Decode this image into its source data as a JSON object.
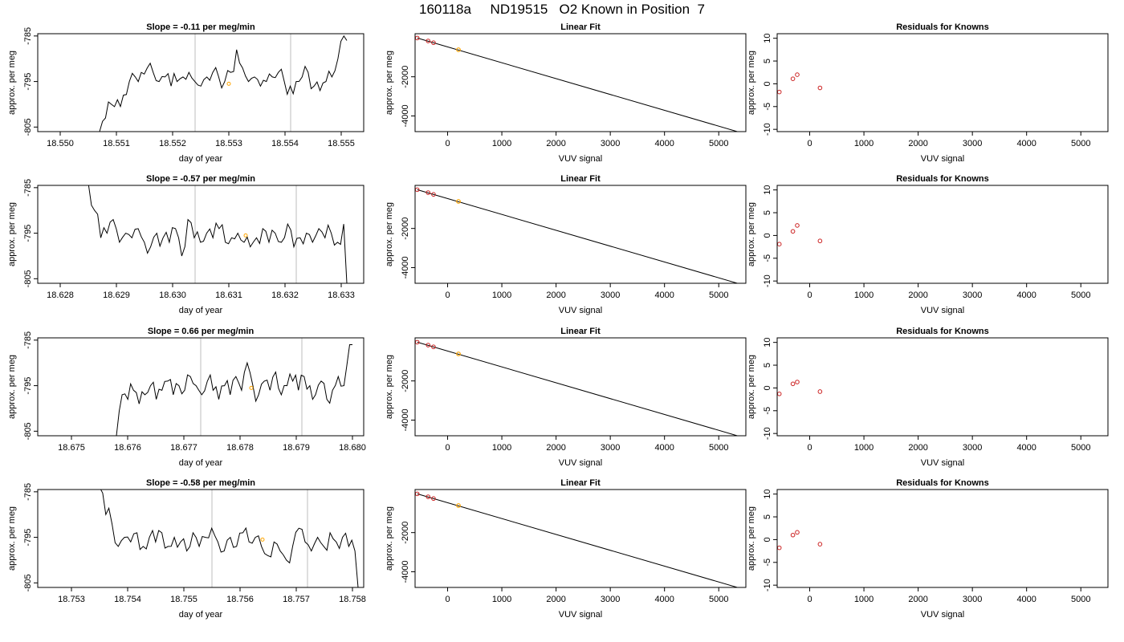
{
  "figure": {
    "title": "160118a     ND19515   O2 Known in Position  7"
  },
  "colors": {
    "line": "#000000",
    "gridline": "#c8c8c8",
    "known_points": "#cc2222",
    "unknown_point": "#ffa500"
  },
  "chart_data": [
    {
      "type": "line",
      "row": 1,
      "title": "Slope =  -0.11  per meg/min",
      "xlabel": "day of year",
      "ylabel": "approx. per meg",
      "xlim": [
        18.5496,
        18.5554
      ],
      "ylim": [
        -806,
        -784.5
      ],
      "xticks": [
        "18.550",
        "18.551",
        "18.552",
        "18.553",
        "18.554",
        "18.555"
      ],
      "yticks": [
        "-805",
        "-795",
        "-785"
      ],
      "vlines": [
        18.5524,
        18.5541
      ],
      "series": [
        {
          "x_start": 18.5507,
          "x_end": 18.5551,
          "seed": 11,
          "end_y": -786,
          "values": [
            -806,
            -803,
            -800,
            -799,
            -798,
            -795,
            -794,
            -793,
            -792,
            -793,
            -795,
            -794,
            -796,
            -795,
            -794,
            -793,
            -795,
            -796,
            -794,
            -793,
            -794,
            -795,
            -793,
            -788,
            -792,
            -795,
            -794,
            -796,
            -795,
            -794,
            -793,
            -795,
            -796,
            -795,
            -794,
            -793,
            -796,
            -797,
            -795,
            -794,
            -790,
            -785
          ]
        }
      ],
      "marker": {
        "x": 18.553,
        "y": -795.5
      }
    },
    {
      "type": "scatter",
      "row": 1,
      "title": "Linear Fit",
      "xlabel": "VUV signal",
      "ylabel": "approx. per meg",
      "xlim": [
        -600,
        5500
      ],
      "ylim": [
        -4800,
        200
      ],
      "xticks": [
        "0",
        "1000",
        "2000",
        "3000",
        "4000",
        "5000"
      ],
      "yticks": [
        "-4000",
        "-2000"
      ],
      "fit_line": {
        "x": [
          -560,
          5380
        ],
        "y": [
          -20,
          -4830
        ]
      },
      "known_points": [
        {
          "x": -560,
          "y": -20
        },
        {
          "x": -360,
          "y": -170
        },
        {
          "x": -260,
          "y": -260
        }
      ],
      "unknown_point": {
        "x": 200,
        "y": -620
      }
    },
    {
      "type": "scatter",
      "row": 1,
      "title": "Residuals for Knowns",
      "xlabel": "VUV signal",
      "ylabel": "approx. per meg",
      "xlim": [
        -600,
        5500
      ],
      "ylim": [
        -10.5,
        11
      ],
      "xticks": [
        "0",
        "1000",
        "2000",
        "3000",
        "4000",
        "5000"
      ],
      "yticks": [
        "-10",
        "-5",
        "0",
        "5",
        "10"
      ],
      "points": [
        {
          "x": -560,
          "y": -1.8
        },
        {
          "x": -310,
          "y": 1.1
        },
        {
          "x": -230,
          "y": 2.0
        },
        {
          "x": 190,
          "y": -0.9
        }
      ]
    },
    {
      "type": "line",
      "row": 2,
      "title": "Slope =  -0.57  per meg/min",
      "xlabel": "day of year",
      "ylabel": "approx. per meg",
      "xlim": [
        18.6276,
        18.6334
      ],
      "ylim": [
        -806,
        -784.5
      ],
      "xticks": [
        "18.628",
        "18.629",
        "18.630",
        "18.631",
        "18.632",
        "18.633"
      ],
      "yticks": [
        "-805",
        "-795",
        "-785"
      ],
      "vlines": [
        18.6304,
        18.6322
      ],
      "series": [
        {
          "x_start": 18.6285,
          "x_end": 18.6331,
          "seed": 23,
          "end_y": -806,
          "values": [
            -784,
            -790,
            -796,
            -795,
            -792,
            -797,
            -795,
            -796,
            -794,
            -797,
            -798,
            -795,
            -796,
            -797,
            -794,
            -800,
            -792,
            -796,
            -797,
            -795,
            -796,
            -794,
            -797,
            -796,
            -795,
            -797,
            -798,
            -796,
            -794,
            -797,
            -795,
            -797,
            -793,
            -798,
            -796,
            -795,
            -797,
            -794,
            -796,
            -795,
            -797,
            -793
          ]
        }
      ],
      "marker": {
        "x": 18.6313,
        "y": -795.5
      }
    },
    {
      "type": "scatter",
      "row": 2,
      "title": "Linear Fit",
      "xlabel": "VUV signal",
      "ylabel": "approx. per meg",
      "xlim": [
        -600,
        5500
      ],
      "ylim": [
        -4800,
        200
      ],
      "xticks": [
        "0",
        "1000",
        "2000",
        "3000",
        "4000",
        "5000"
      ],
      "yticks": [
        "-4000",
        "-2000"
      ],
      "fit_line": {
        "x": [
          -560,
          5380
        ],
        "y": [
          -20,
          -4830
        ]
      },
      "known_points": [
        {
          "x": -560,
          "y": -20
        },
        {
          "x": -360,
          "y": -170
        },
        {
          "x": -260,
          "y": -260
        }
      ],
      "unknown_point": {
        "x": 200,
        "y": -620
      }
    },
    {
      "type": "scatter",
      "row": 2,
      "title": "Residuals for Knowns",
      "xlabel": "VUV signal",
      "ylabel": "approx. per meg",
      "xlim": [
        -600,
        5500
      ],
      "ylim": [
        -10.5,
        11
      ],
      "xticks": [
        "0",
        "1000",
        "2000",
        "3000",
        "4000",
        "5000"
      ],
      "yticks": [
        "-10",
        "-5",
        "0",
        "5",
        "10"
      ],
      "points": [
        {
          "x": -560,
          "y": -1.9
        },
        {
          "x": -310,
          "y": 0.9
        },
        {
          "x": -230,
          "y": 2.2
        },
        {
          "x": 190,
          "y": -1.2
        }
      ]
    },
    {
      "type": "line",
      "row": 3,
      "title": "Slope =  0.66  per meg/min",
      "xlabel": "day of year",
      "ylabel": "approx. per meg",
      "xlim": [
        18.6744,
        18.6802
      ],
      "ylim": [
        -806,
        -784.5
      ],
      "xticks": [
        "18.675",
        "18.676",
        "18.677",
        "18.678",
        "18.679",
        "18.680"
      ],
      "yticks": [
        "-805",
        "-795",
        "-785"
      ],
      "vlines": [
        18.6773,
        18.6791
      ],
      "series": [
        {
          "x_start": 18.6758,
          "x_end": 18.68,
          "seed": 37,
          "end_y": -786,
          "values": [
            -806,
            -797,
            -798,
            -796,
            -799,
            -797,
            -795,
            -798,
            -796,
            -794,
            -797,
            -795,
            -796,
            -793,
            -795,
            -797,
            -794,
            -796,
            -798,
            -795,
            -797,
            -793,
            -796,
            -790,
            -795,
            -797,
            -794,
            -796,
            -792,
            -797,
            -795,
            -794,
            -796,
            -793,
            -795,
            -797,
            -794,
            -798,
            -796,
            -793,
            -795,
            -786
          ]
        }
      ],
      "marker": {
        "x": 18.6782,
        "y": -795.5
      }
    },
    {
      "type": "scatter",
      "row": 3,
      "title": "Linear Fit",
      "xlabel": "VUV signal",
      "ylabel": "approx. per meg",
      "xlim": [
        -600,
        5500
      ],
      "ylim": [
        -4800,
        200
      ],
      "xticks": [
        "0",
        "1000",
        "2000",
        "3000",
        "4000",
        "5000"
      ],
      "yticks": [
        "-4000",
        "-2000"
      ],
      "fit_line": {
        "x": [
          -560,
          5380
        ],
        "y": [
          -20,
          -4830
        ]
      },
      "known_points": [
        {
          "x": -560,
          "y": -20
        },
        {
          "x": -360,
          "y": -170
        },
        {
          "x": -260,
          "y": -260
        }
      ],
      "unknown_point": {
        "x": 200,
        "y": -620
      }
    },
    {
      "type": "scatter",
      "row": 3,
      "title": "Residuals for Knowns",
      "xlabel": "VUV signal",
      "ylabel": "approx. per meg",
      "xlim": [
        -600,
        5500
      ],
      "ylim": [
        -10.5,
        11
      ],
      "xticks": [
        "0",
        "1000",
        "2000",
        "3000",
        "4000",
        "5000"
      ],
      "yticks": [
        "-10",
        "-5",
        "0",
        "5",
        "10"
      ],
      "points": [
        {
          "x": -560,
          "y": -1.3
        },
        {
          "x": -310,
          "y": 0.9
        },
        {
          "x": -230,
          "y": 1.3
        },
        {
          "x": 190,
          "y": -0.8
        }
      ]
    },
    {
      "type": "line",
      "row": 4,
      "title": "Slope =  -0.58  per meg/min",
      "xlabel": "day of year",
      "ylabel": "approx. per meg",
      "xlim": [
        18.7524,
        18.7582
      ],
      "ylim": [
        -806,
        -784.5
      ],
      "xticks": [
        "18.753",
        "18.754",
        "18.755",
        "18.756",
        "18.757",
        "18.758"
      ],
      "yticks": [
        "-805",
        "-795",
        "-785"
      ],
      "vlines": [
        18.7555,
        18.7572
      ],
      "series": [
        {
          "x_start": 18.7535,
          "x_end": 18.7581,
          "seed": 41,
          "end_y": -806,
          "values": [
            -784,
            -790,
            -792,
            -797,
            -795,
            -796,
            -794,
            -797,
            -795,
            -796,
            -794,
            -797,
            -795,
            -796,
            -798,
            -794,
            -797,
            -795,
            -793,
            -796,
            -798,
            -795,
            -797,
            -794,
            -796,
            -795,
            -797,
            -799,
            -796,
            -798,
            -800,
            -797,
            -793,
            -796,
            -798,
            -795,
            -797,
            -794,
            -796,
            -795,
            -797,
            -798
          ]
        }
      ],
      "marker": {
        "x": 18.7564,
        "y": -795.5
      }
    },
    {
      "type": "scatter",
      "row": 4,
      "title": "Linear Fit",
      "xlabel": "VUV signal",
      "ylabel": "approx. per meg",
      "xlim": [
        -600,
        5500
      ],
      "ylim": [
        -4800,
        200
      ],
      "xticks": [
        "0",
        "1000",
        "2000",
        "3000",
        "4000",
        "5000"
      ],
      "yticks": [
        "-4000",
        "-2000"
      ],
      "fit_line": {
        "x": [
          -560,
          5380
        ],
        "y": [
          -20,
          -4830
        ]
      },
      "known_points": [
        {
          "x": -560,
          "y": -20
        },
        {
          "x": -360,
          "y": -170
        },
        {
          "x": -260,
          "y": -260
        }
      ],
      "unknown_point": {
        "x": 200,
        "y": -620
      }
    },
    {
      "type": "scatter",
      "row": 4,
      "title": "Residuals for Knowns",
      "xlabel": "VUV signal",
      "ylabel": "approx. per meg",
      "xlim": [
        -600,
        5500
      ],
      "ylim": [
        -10.5,
        11
      ],
      "xticks": [
        "0",
        "1000",
        "2000",
        "3000",
        "4000",
        "5000"
      ],
      "yticks": [
        "-10",
        "-5",
        "0",
        "5",
        "10"
      ],
      "points": [
        {
          "x": -560,
          "y": -1.8
        },
        {
          "x": -310,
          "y": 1.0
        },
        {
          "x": -230,
          "y": 1.6
        },
        {
          "x": 190,
          "y": -1.0
        }
      ]
    }
  ]
}
